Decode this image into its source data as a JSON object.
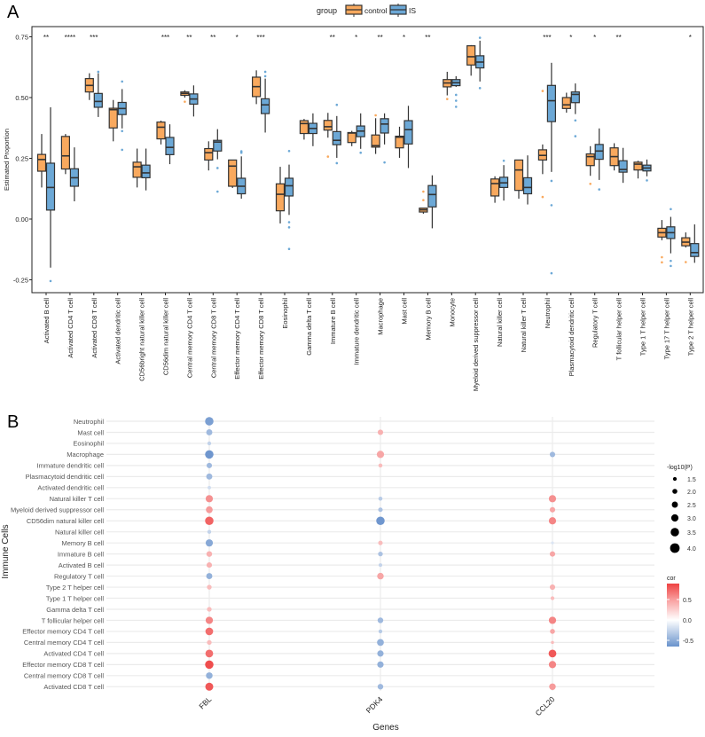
{
  "panel_labels": {
    "a": "A",
    "b": "B"
  },
  "colors": {
    "control": "#F9A95E",
    "IS": "#6CA8D6",
    "outline": "#333333",
    "cor_low": "#6A93CC",
    "cor_mid": "#FFFFFF",
    "cor_high": "#EE4242",
    "grid": "#EBEBEB"
  },
  "chart_data": [
    {
      "type": "box",
      "ylabel": "Estimated Proportion",
      "xlabel": "",
      "ylim": [
        -0.28,
        0.79
      ],
      "yticks": [
        "0.75",
        "0.50",
        "0.25",
        "0.00",
        "-0.25"
      ],
      "ytick_values": [
        0.75,
        0.5,
        0.25,
        0.0,
        -0.25
      ],
      "legend": {
        "title": "group",
        "position": "top",
        "entries": [
          "control",
          "IS"
        ]
      },
      "categories": [
        "Activated B cell",
        "Activated CD4 T cell",
        "Activated CD8 T cell",
        "Activated dendritic cell",
        "CD56bright natural killer cell",
        "CD56dim natural killer cell",
        "Central memory CD4 T cell",
        "Central memory CD8 T cell",
        "Effector memory CD4 T cell",
        "Effector memory CD8 T cell",
        "Eosinophil",
        "Gamma delta T cell",
        "Immature  B cell",
        "Immature dendritic cell",
        "Macrophage",
        "Mast cell",
        "Memory B cell",
        "Monocyte",
        "Myeloid derived suppressor cell",
        "Natural killer cell",
        "Natural killer T cell",
        "Neutrophil",
        "Plasmacytoid dendritic cell",
        "Regulatory T cell",
        "T follicular helper cell",
        "Type 1 T helper cell",
        "Type 17 T helper cell",
        "Type 2 T helper cell"
      ],
      "significance": [
        "**",
        "****",
        "***",
        "",
        "",
        "***",
        "**",
        "**",
        "*",
        "***",
        "",
        "",
        "**",
        "*",
        "**",
        "*",
        "**",
        "",
        "",
        "",
        "",
        "***",
        "*",
        "*",
        "**",
        "",
        "",
        "*"
      ],
      "stats_order": [
        "whisker_low",
        "q1",
        "median",
        "q3",
        "whisker_high",
        "outliers"
      ],
      "series": [
        {
          "name": "control",
          "boxes": [
            [
              0.13,
              0.197,
              0.245,
              0.266,
              0.35,
              []
            ],
            [
              0.185,
              0.206,
              0.26,
              0.34,
              0.35,
              []
            ],
            [
              0.49,
              0.523,
              0.55,
              0.578,
              0.6,
              []
            ],
            [
              0.32,
              0.375,
              0.45,
              0.456,
              0.49,
              []
            ],
            [
              0.13,
              0.172,
              0.215,
              0.234,
              0.29,
              []
            ],
            [
              0.307,
              0.33,
              0.378,
              0.399,
              0.405,
              []
            ],
            [
              0.5,
              0.509,
              0.517,
              0.523,
              0.53,
              [
                0.483
              ]
            ],
            [
              0.2,
              0.243,
              0.273,
              0.29,
              0.32,
              []
            ],
            [
              0.128,
              0.135,
              0.218,
              0.243,
              0.243,
              []
            ],
            [
              0.473,
              0.504,
              0.545,
              0.584,
              0.612,
              []
            ],
            [
              -0.018,
              0.034,
              0.102,
              0.145,
              0.215,
              []
            ],
            [
              0.327,
              0.352,
              0.393,
              0.405,
              0.412,
              []
            ],
            [
              0.335,
              0.366,
              0.38,
              0.406,
              0.437,
              [
                0.257
              ]
            ],
            [
              0.3,
              0.315,
              0.354,
              0.356,
              0.363,
              []
            ],
            [
              0.268,
              0.296,
              0.302,
              0.346,
              0.415,
              [
                0.427
              ]
            ],
            [
              0.252,
              0.293,
              0.337,
              0.341,
              0.38,
              []
            ],
            [
              0.022,
              0.029,
              0.038,
              0.045,
              0.045,
              [
                0.113,
                0.078
              ]
            ],
            [
              0.509,
              0.544,
              0.56,
              0.574,
              0.606,
              [
                0.494
              ]
            ],
            [
              0.59,
              0.634,
              0.668,
              0.713,
              0.716,
              []
            ],
            [
              0.067,
              0.095,
              0.146,
              0.165,
              0.176,
              []
            ],
            [
              0.084,
              0.118,
              0.202,
              0.243,
              0.243,
              []
            ],
            [
              0.185,
              0.243,
              0.262,
              0.285,
              0.307,
              [
                0.527,
                0.091
              ]
            ],
            [
              0.438,
              0.455,
              0.47,
              0.5,
              0.52,
              []
            ],
            [
              0.178,
              0.22,
              0.257,
              0.268,
              0.3,
              [
                0.145
              ]
            ],
            [
              0.2,
              0.22,
              0.257,
              0.293,
              0.312,
              []
            ],
            [
              0.167,
              0.202,
              0.226,
              0.234,
              0.24,
              []
            ],
            [
              -0.087,
              -0.074,
              -0.056,
              -0.038,
              -0.004,
              [
                -0.157,
                -0.178
              ]
            ],
            [
              -0.117,
              -0.11,
              -0.095,
              -0.077,
              -0.055,
              [
                -0.177
              ]
            ]
          ]
        },
        {
          "name": "IS",
          "boxes": [
            [
              -0.2,
              0.037,
              0.13,
              0.23,
              0.46,
              [
                -0.255
              ]
            ],
            [
              0.073,
              0.135,
              0.17,
              0.207,
              0.295,
              []
            ],
            [
              0.42,
              0.46,
              0.484,
              0.517,
              0.6,
              [
                0.606
              ]
            ],
            [
              0.373,
              0.43,
              0.455,
              0.48,
              0.535,
              [
                0.566,
                0.362,
                0.285
              ]
            ],
            [
              0.118,
              0.17,
              0.19,
              0.222,
              0.29,
              []
            ],
            [
              0.226,
              0.265,
              0.295,
              0.336,
              0.39,
              []
            ],
            [
              0.422,
              0.473,
              0.494,
              0.515,
              0.55,
              []
            ],
            [
              0.246,
              0.28,
              0.317,
              0.324,
              0.37,
              [
                0.21,
                0.113
              ]
            ],
            [
              0.084,
              0.104,
              0.135,
              0.168,
              0.258,
              [
                0.279,
                0.273
              ]
            ],
            [
              0.356,
              0.434,
              0.47,
              0.495,
              0.578,
              [
                0.606,
                0.588
              ]
            ],
            [
              0.017,
              0.095,
              0.137,
              0.168,
              0.224,
              [
                0.28,
                -0.013,
                -0.034,
                -0.123
              ]
            ],
            [
              0.3,
              0.352,
              0.373,
              0.394,
              0.435,
              []
            ],
            [
              0.252,
              0.306,
              0.324,
              0.36,
              0.424,
              [
                0.47,
                0.23
              ]
            ],
            [
              0.289,
              0.339,
              0.362,
              0.383,
              0.435,
              [
                0.273
              ]
            ],
            [
              0.307,
              0.354,
              0.391,
              0.413,
              0.435,
              [
                0.233
              ]
            ],
            [
              0.21,
              0.309,
              0.368,
              0.405,
              0.466,
              []
            ],
            [
              -0.038,
              0.05,
              0.101,
              0.138,
              0.18,
              []
            ],
            [
              0.544,
              0.549,
              0.561,
              0.574,
              0.588,
              [
                0.511,
                0.487,
                0.462
              ]
            ],
            [
              0.566,
              0.622,
              0.646,
              0.672,
              0.734,
              [
                0.746,
                0.539
              ]
            ],
            [
              0.076,
              0.13,
              0.149,
              0.172,
              0.222,
              [
                0.24
              ]
            ],
            [
              0.06,
              0.104,
              0.13,
              0.17,
              0.262,
              []
            ],
            [
              0.194,
              0.401,
              0.487,
              0.55,
              0.643,
              [
                0.157,
                0.057,
                -0.223
              ]
            ],
            [
              0.432,
              0.479,
              0.513,
              0.523,
              0.558,
              [
                0.406,
                0.341
              ]
            ],
            [
              0.161,
              0.246,
              0.28,
              0.307,
              0.373,
              [
                0.122
              ]
            ],
            [
              0.149,
              0.193,
              0.204,
              0.24,
              0.293,
              []
            ],
            [
              0.176,
              0.198,
              0.21,
              0.222,
              0.245,
              [
                0.159
              ]
            ],
            [
              -0.141,
              -0.08,
              -0.056,
              -0.032,
              0.009,
              [
                0.041,
                -0.172,
                -0.193
              ]
            ],
            [
              -0.18,
              -0.154,
              -0.138,
              -0.101,
              -0.022,
              []
            ]
          ]
        }
      ]
    },
    {
      "type": "dot",
      "xlabel": "Genes",
      "ylabel": "Immune Cells",
      "genes": [
        "FBL",
        "PDK4",
        "CCL20"
      ],
      "cells": [
        "Neutrophil",
        "Mast cell",
        "Eosinophil",
        "Macrophage",
        "Immature dendritic cell",
        "Plasmacytoid dendritic cell",
        "Activated dendritic cell",
        "Natural killer T cell",
        "Myeloid derived suppressor cell",
        "CD56dim natural killer cell",
        "Natural killer cell",
        "Memory B cell",
        "Immature  B cell",
        "Activated B cell",
        "Regulatory T cell",
        "Type 2 T helper cell",
        "Type 1 T helper cell",
        "Gamma delta T cell",
        "T follicular helper cell",
        "Effector memory CD4 T cell",
        "Central memory CD4 T cell",
        "Activated CD4 T cell",
        "Effector memory CD8 T cell",
        "Central memory CD8 T cell",
        "Activated CD8 T cell"
      ],
      "value_order": [
        "cor",
        "neg_log10_p"
      ],
      "values": {
        "FBL": [
          [
            -0.55,
            3.5
          ],
          [
            -0.4,
            2.5
          ],
          [
            -0.25,
            1.5
          ],
          [
            -0.6,
            3.5
          ],
          [
            -0.4,
            2.2
          ],
          [
            -0.4,
            2.5
          ],
          [
            -0.2,
            1.3
          ],
          [
            0.5,
            3.0
          ],
          [
            0.45,
            2.8
          ],
          [
            0.7,
            3.5
          ],
          [
            -0.25,
            1.5
          ],
          [
            -0.5,
            3.0
          ],
          [
            0.35,
            2.3
          ],
          [
            0.35,
            2.2
          ],
          [
            -0.45,
            2.5
          ],
          [
            0.3,
            1.9
          ],
          null,
          [
            0.3,
            1.9
          ],
          [
            0.55,
            3.0
          ],
          [
            0.65,
            3.2
          ],
          [
            0.3,
            1.9
          ],
          [
            0.65,
            3.2
          ],
          [
            0.8,
            3.5
          ],
          [
            -0.45,
            2.7
          ],
          [
            0.75,
            3.3
          ]
        ],
        "PDK4": [
          null,
          [
            0.35,
            2.2
          ],
          null,
          [
            0.4,
            3.0
          ],
          [
            0.3,
            1.6
          ],
          null,
          null,
          [
            -0.3,
            1.6
          ],
          [
            -0.35,
            1.8
          ],
          [
            -0.6,
            3.5
          ],
          null,
          [
            0.3,
            1.8
          ],
          [
            -0.35,
            1.9
          ],
          [
            -0.25,
            1.4
          ],
          [
            0.4,
            2.7
          ],
          null,
          null,
          null,
          [
            -0.4,
            2.3
          ],
          [
            -0.3,
            1.5
          ],
          [
            -0.45,
            2.8
          ],
          [
            -0.45,
            2.6
          ],
          [
            -0.45,
            2.6
          ],
          null,
          [
            -0.4,
            2.3
          ]
        ],
        "CCL20": [
          null,
          null,
          null,
          [
            -0.4,
            2.2
          ],
          null,
          null,
          null,
          [
            0.5,
            3.0
          ],
          [
            0.4,
            2.2
          ],
          [
            0.55,
            3.0
          ],
          null,
          [
            -0.15,
            1.1
          ],
          [
            0.4,
            2.2
          ],
          null,
          null,
          [
            0.35,
            2.2
          ],
          [
            0.3,
            1.5
          ],
          null,
          [
            0.55,
            3.0
          ],
          [
            0.4,
            2.0
          ],
          [
            0.3,
            1.2
          ],
          [
            0.75,
            3.2
          ],
          [
            0.55,
            3.0
          ],
          null,
          [
            0.45,
            2.7
          ]
        ]
      },
      "size_legend": {
        "title": "-log10(P)",
        "entries": [
          "1.5",
          "2.0",
          "2.5",
          "3.0",
          "3.5",
          "4.0"
        ],
        "values": [
          1.5,
          2.0,
          2.5,
          3.0,
          3.5,
          4.0
        ]
      },
      "color_legend": {
        "title": "cor",
        "ticks": [
          "0.5",
          "0.0",
          "-0.5"
        ],
        "tick_values": [
          0.5,
          0.0,
          -0.5
        ],
        "range": [
          -0.65,
          0.89
        ]
      }
    }
  ]
}
